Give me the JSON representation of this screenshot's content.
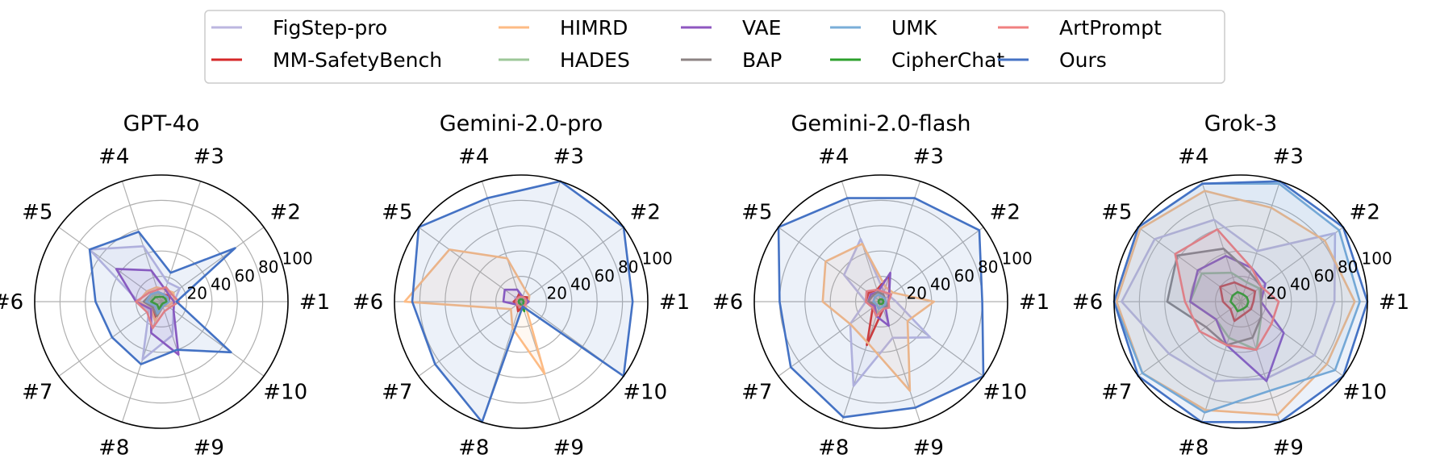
{
  "legend": {
    "entries": [
      {
        "name": "FigStep-pro",
        "color": "#bcb7e0"
      },
      {
        "name": "MM-SafetyBench",
        "color": "#d62728"
      },
      {
        "name": "HIMRD",
        "color": "#fdbb84"
      },
      {
        "name": "HADES",
        "color": "#9dc798"
      },
      {
        "name": "VAE",
        "color": "#8f57c0"
      },
      {
        "name": "BAP",
        "color": "#8c8383"
      },
      {
        "name": "UMK",
        "color": "#7aaed8"
      },
      {
        "name": "CipherChat",
        "color": "#2ca02c"
      },
      {
        "name": "ArtPrompt",
        "color": "#f08080"
      },
      {
        "name": "Ours",
        "color": "#4472c4"
      }
    ]
  },
  "chart_data": [
    {
      "type": "radar",
      "title": "GPT-4o",
      "categories": [
        "#1",
        "#2",
        "#3",
        "#4",
        "#5",
        "#6",
        "#7",
        "#8",
        "#9",
        "#10"
      ],
      "rlim": [
        0,
        100
      ],
      "rticks": [
        20,
        40,
        60,
        80,
        100
      ],
      "series": [
        {
          "name": "FigStep-pro",
          "values": [
            10,
            18,
            16,
            46,
            70,
            18,
            12,
            48,
            28,
            12
          ]
        },
        {
          "name": "MM-SafetyBench",
          "values": [
            6,
            8,
            6,
            8,
            10,
            12,
            8,
            14,
            4,
            4
          ]
        },
        {
          "name": "HIMRD",
          "values": [
            10,
            12,
            10,
            12,
            14,
            18,
            10,
            16,
            4,
            6
          ]
        },
        {
          "name": "HADES",
          "values": [
            6,
            6,
            6,
            6,
            8,
            10,
            6,
            8,
            4,
            4
          ]
        },
        {
          "name": "VAE",
          "values": [
            10,
            8,
            10,
            26,
            44,
            20,
            10,
            26,
            44,
            12
          ]
        },
        {
          "name": "BAP",
          "values": [
            6,
            6,
            6,
            8,
            10,
            14,
            8,
            12,
            4,
            4
          ]
        },
        {
          "name": "UMK",
          "values": [
            6,
            6,
            6,
            8,
            10,
            12,
            6,
            10,
            4,
            4
          ]
        },
        {
          "name": "CipherChat",
          "values": [
            4,
            4,
            4,
            4,
            6,
            8,
            4,
            6,
            2,
            2
          ]
        },
        {
          "name": "ArtPrompt",
          "values": [
            14,
            10,
            12,
            10,
            12,
            20,
            14,
            22,
            8,
            8
          ]
        },
        {
          "name": "Ours",
          "values": [
            12,
            72,
            24,
            58,
            70,
            52,
            48,
            52,
            40,
            68
          ]
        }
      ]
    },
    {
      "type": "radar",
      "title": "Gemini-2.0-pro",
      "categories": [
        "#1",
        "#2",
        "#3",
        "#4",
        "#5",
        "#6",
        "#7",
        "#8",
        "#9",
        "#10"
      ],
      "rlim": [
        0,
        100
      ],
      "rticks": [
        20,
        40,
        60,
        80,
        100
      ],
      "series": [
        {
          "name": "FigStep-pro",
          "values": [
            4,
            4,
            4,
            4,
            6,
            4,
            4,
            4,
            4,
            4
          ]
        },
        {
          "name": "MM-SafetyBench",
          "values": [
            4,
            6,
            4,
            6,
            4,
            6,
            4,
            8,
            4,
            4
          ]
        },
        {
          "name": "HIMRD",
          "values": [
            6,
            8,
            10,
            36,
            70,
            92,
            10,
            22,
            60,
            4
          ]
        },
        {
          "name": "HADES",
          "values": [
            2,
            2,
            2,
            2,
            2,
            2,
            2,
            2,
            4,
            2
          ]
        },
        {
          "name": "VAE",
          "values": [
            6,
            4,
            4,
            10,
            16,
            14,
            4,
            4,
            2,
            4
          ]
        },
        {
          "name": "BAP",
          "values": [
            2,
            2,
            2,
            2,
            2,
            2,
            2,
            2,
            2,
            2
          ]
        },
        {
          "name": "UMK",
          "values": [
            2,
            2,
            2,
            2,
            2,
            2,
            2,
            2,
            2,
            2
          ]
        },
        {
          "name": "CipherChat",
          "values": [
            2,
            2,
            2,
            2,
            2,
            2,
            2,
            2,
            8,
            2
          ]
        },
        {
          "name": "ArtPrompt",
          "values": [
            4,
            4,
            4,
            4,
            4,
            4,
            4,
            4,
            4,
            4
          ]
        },
        {
          "name": "Ours",
          "values": [
            88,
            100,
            100,
            86,
            100,
            86,
            84,
            100,
            4,
            100
          ]
        }
      ]
    },
    {
      "type": "radar",
      "title": "Gemini-2.0-flash",
      "categories": [
        "#1",
        "#2",
        "#3",
        "#4",
        "#5",
        "#6",
        "#7",
        "#8",
        "#9",
        "#10"
      ],
      "rlim": [
        0,
        100
      ],
      "rticks": [
        20,
        40,
        60,
        80,
        100
      ],
      "series": [
        {
          "name": "FigStep-pro",
          "values": [
            12,
            8,
            8,
            52,
            36,
            12,
            30,
            70,
            30,
            48
          ]
        },
        {
          "name": "MM-SafetyBench",
          "values": [
            6,
            8,
            22,
            10,
            12,
            12,
            8,
            36,
            6,
            6
          ]
        },
        {
          "name": "HIMRD",
          "values": [
            42,
            12,
            12,
            48,
            54,
            46,
            30,
            34,
            74,
            26
          ]
        },
        {
          "name": "HADES",
          "values": [
            4,
            4,
            4,
            6,
            6,
            6,
            6,
            10,
            6,
            4
          ]
        },
        {
          "name": "VAE",
          "values": [
            6,
            8,
            24,
            8,
            10,
            10,
            6,
            12,
            20,
            4
          ]
        },
        {
          "name": "BAP",
          "values": [
            4,
            4,
            6,
            8,
            8,
            10,
            4,
            6,
            4,
            6
          ]
        },
        {
          "name": "UMK",
          "values": [
            4,
            4,
            4,
            6,
            6,
            6,
            4,
            6,
            4,
            4
          ]
        },
        {
          "name": "CipherChat",
          "values": [
            2,
            2,
            2,
            2,
            2,
            2,
            2,
            2,
            2,
            2
          ]
        },
        {
          "name": "ArtPrompt",
          "values": [
            6,
            10,
            8,
            10,
            14,
            12,
            8,
            12,
            6,
            8
          ]
        },
        {
          "name": "Ours",
          "values": [
            80,
            96,
            86,
            86,
            100,
            80,
            88,
            96,
            88,
            100
          ]
        }
      ]
    },
    {
      "type": "radar",
      "title": "Grok-3",
      "categories": [
        "#1",
        "#2",
        "#3",
        "#4",
        "#5",
        "#6",
        "#7",
        "#8",
        "#9",
        "#10"
      ],
      "rlim": [
        0,
        100
      ],
      "rticks": [
        20,
        40,
        60,
        80,
        100
      ],
      "series": [
        {
          "name": "FigStep-pro",
          "values": [
            74,
            92,
            42,
            68,
            84,
            94,
            70,
            66,
            64,
            72
          ]
        },
        {
          "name": "MM-SafetyBench",
          "values": [
            10,
            14,
            12,
            16,
            20,
            14,
            10,
            16,
            10,
            10
          ]
        },
        {
          "name": "HIMRD",
          "values": [
            90,
            82,
            78,
            92,
            98,
            98,
            96,
            90,
            94,
            84
          ]
        },
        {
          "name": "HADES",
          "values": [
            16,
            18,
            16,
            24,
            38,
            40,
            24,
            30,
            40,
            20
          ]
        },
        {
          "name": "VAE",
          "values": [
            16,
            24,
            28,
            38,
            42,
            40,
            24,
            36,
            66,
            42
          ]
        },
        {
          "name": "BAP",
          "values": [
            16,
            20,
            24,
            44,
            62,
            58,
            34,
            36,
            30,
            20
          ]
        },
        {
          "name": "UMK",
          "values": [
            94,
            96,
            98,
            98,
            100,
            100,
            96,
            92,
            74,
            92
          ]
        },
        {
          "name": "CipherChat",
          "values": [
            6,
            6,
            6,
            8,
            8,
            8,
            6,
            8,
            6,
            6
          ]
        },
        {
          "name": "ArtPrompt",
          "values": [
            30,
            20,
            28,
            60,
            64,
            44,
            40,
            36,
            40,
            30
          ]
        },
        {
          "name": "Ours",
          "values": [
            100,
            100,
            100,
            98,
            100,
            100,
            100,
            100,
            100,
            100
          ]
        }
      ]
    }
  ]
}
